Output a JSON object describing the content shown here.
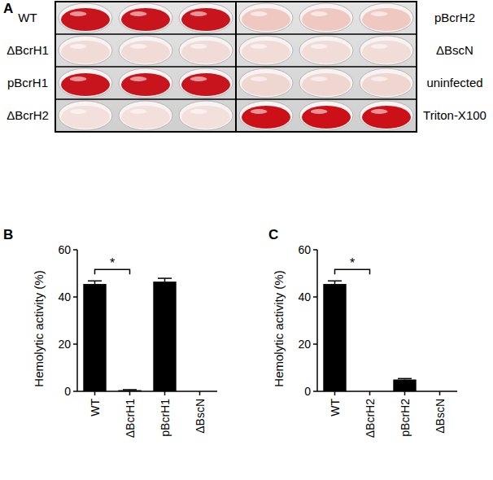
{
  "panel_a": {
    "label": "A",
    "columns": [
      [
        {
          "label": "WT",
          "color": "#c8141c"
        },
        {
          "label": "ΔBcrH1",
          "color": "#f1dbd6"
        },
        {
          "label": "pBcrH1",
          "color": "#c8141c"
        },
        {
          "label": "ΔBcrH2",
          "color": "#f3e0dc"
        }
      ],
      [
        {
          "label": "pBcrH2",
          "color": "#efc9c1"
        },
        {
          "label": "ΔBscN",
          "color": "#f1dcd8"
        },
        {
          "label": "uninfected",
          "color": "#efd6d0"
        },
        {
          "label": "Triton-X100",
          "color": "#cc1018"
        }
      ]
    ]
  },
  "chart_data": [
    {
      "type": "bar",
      "panel_label": "B",
      "y_label": "Hemolytic activity (%)",
      "categories": [
        "WT",
        "ΔBcrH1",
        "pBcrH1",
        "ΔBscN"
      ],
      "values": [
        45.5,
        0.5,
        46.5,
        0
      ],
      "errors": [
        1.3,
        0.2,
        1.4,
        0
      ],
      "color": "#000000",
      "ylim": [
        0,
        60
      ],
      "yticks": [
        0,
        20,
        40,
        60
      ],
      "grid": false,
      "annotations": [
        {
          "text": "*",
          "categories": [
            "WT",
            "ΔBcrH1"
          ]
        }
      ]
    },
    {
      "type": "bar",
      "panel_label": "C",
      "y_label": "Hemolytic activity (%)",
      "categories": [
        "WT",
        "ΔBcrH2",
        "pBcrH2",
        "ΔBscN"
      ],
      "values": [
        45.5,
        0,
        5,
        0
      ],
      "errors": [
        1.3,
        0,
        0.4,
        0
      ],
      "color": "#000000",
      "ylim": [
        0,
        60
      ],
      "yticks": [
        0,
        20,
        40,
        60
      ],
      "grid": false,
      "annotations": [
        {
          "text": "*",
          "categories": [
            "WT",
            "ΔBcrH2"
          ]
        }
      ]
    }
  ]
}
